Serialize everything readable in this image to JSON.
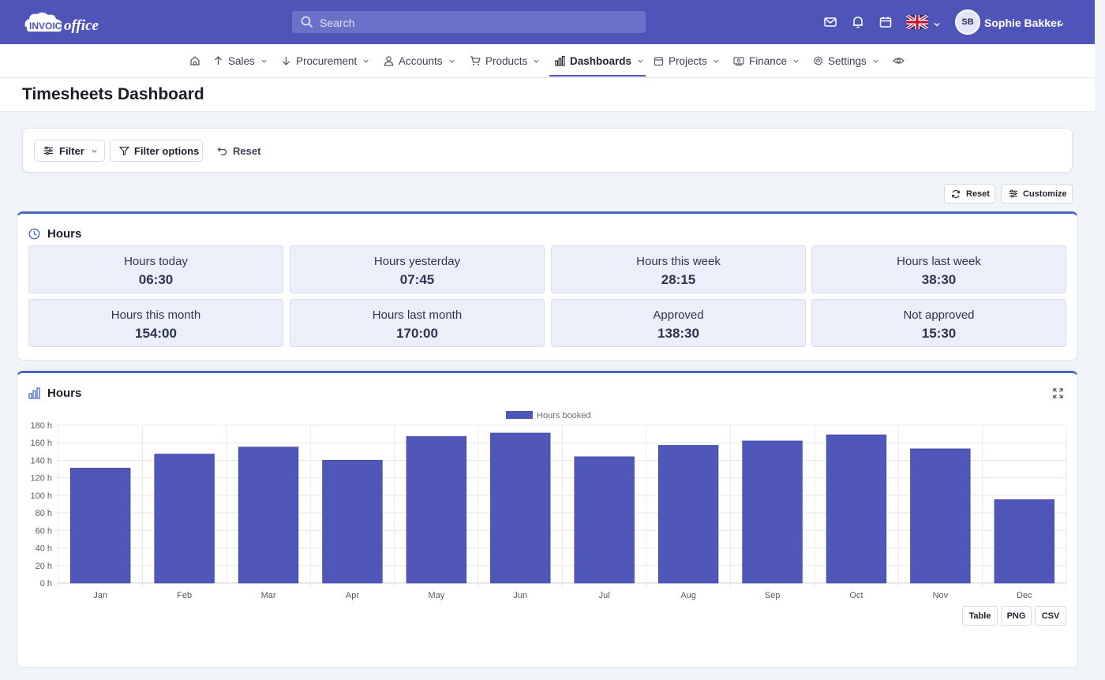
{
  "app": {
    "logo_text": "INVOICEoffice",
    "search_placeholder": "Search",
    "user_initials": "SB",
    "user_name": "Sophie Bakker"
  },
  "nav": {
    "items": [
      {
        "label": "Sales",
        "icon": "arrow-up-icon"
      },
      {
        "label": "Procurement",
        "icon": "arrow-down-icon"
      },
      {
        "label": "Accounts",
        "icon": "person-icon"
      },
      {
        "label": "Products",
        "icon": "cart-icon"
      },
      {
        "label": "Dashboards",
        "icon": "bar-chart-icon",
        "active": true
      },
      {
        "label": "Projects",
        "icon": "calendar-icon"
      },
      {
        "label": "Finance",
        "icon": "money-icon"
      },
      {
        "label": "Settings",
        "icon": "gear-icon"
      }
    ]
  },
  "page": {
    "title": "Timesheets Dashboard"
  },
  "filters": {
    "filter_label": "Filter",
    "filter_options_label": "Filter options",
    "reset_label": "Reset"
  },
  "dashboard_actions": {
    "reset_label": "Reset",
    "customize_label": "Customize"
  },
  "hours_card": {
    "title": "Hours",
    "kpis": [
      {
        "label": "Hours today",
        "value": "06:30"
      },
      {
        "label": "Hours yesterday",
        "value": "07:45"
      },
      {
        "label": "Hours this week",
        "value": "28:15"
      },
      {
        "label": "Hours last week",
        "value": "38:30"
      },
      {
        "label": "Hours this month",
        "value": "154:00"
      },
      {
        "label": "Hours last month",
        "value": "170:00"
      },
      {
        "label": "Approved",
        "value": "138:30"
      },
      {
        "label": "Not approved",
        "value": "15:30"
      }
    ]
  },
  "chart_card": {
    "title": "Hours",
    "export_table": "Table",
    "export_png": "PNG",
    "export_csv": "CSV"
  },
  "chart_data": {
    "type": "bar",
    "categories": [
      "Jan",
      "Feb",
      "Mar",
      "Apr",
      "May",
      "Jun",
      "Jul",
      "Aug",
      "Sep",
      "Oct",
      "Nov",
      "Dec"
    ],
    "series": [
      {
        "name": "Hours booked",
        "values": [
          131,
          147,
          155,
          140,
          167,
          171,
          144,
          157,
          162,
          169,
          153,
          95
        ],
        "color": "#5157b9"
      }
    ],
    "ylim": [
      0,
      180
    ],
    "yticks": [
      0,
      20,
      40,
      60,
      80,
      100,
      120,
      140,
      160,
      180
    ],
    "ytick_labels": [
      "0 h",
      "20 h",
      "40 h",
      "60 h",
      "80 h",
      "100 h",
      "120 h",
      "140 h",
      "160 h",
      "180 h"
    ],
    "legend_position": "top",
    "grid": true
  },
  "colors": {
    "brand": "#4f55b8",
    "accent_border": "#4a66c6",
    "bar": "#5157b9"
  }
}
